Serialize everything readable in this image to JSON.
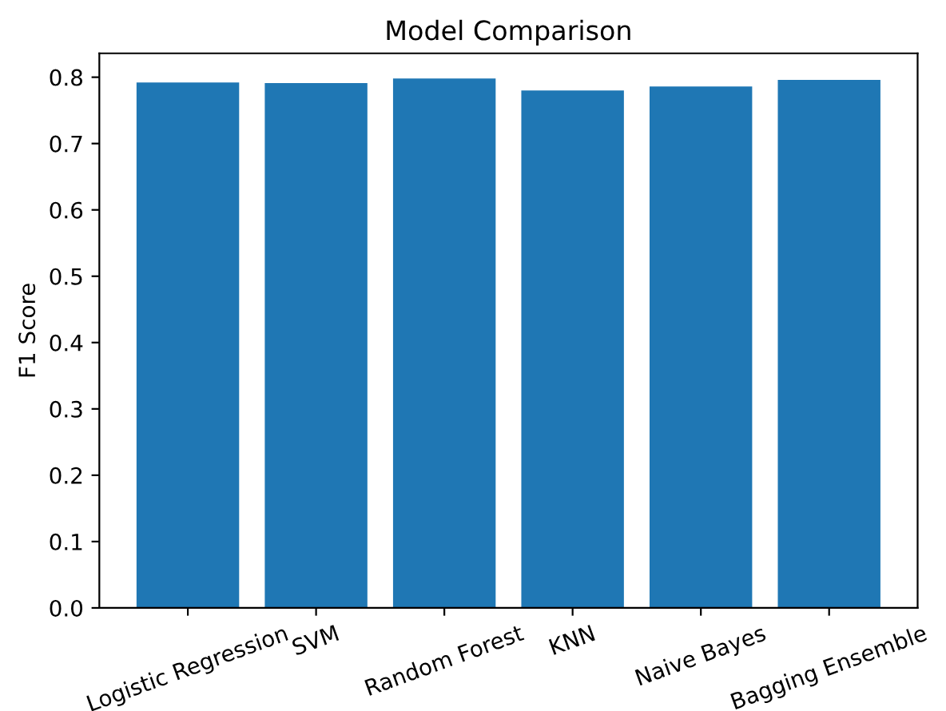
{
  "chart_data": {
    "type": "bar",
    "title": "Model Comparison",
    "ylabel": "F1 Score",
    "categories": [
      "Logistic Regression",
      "SVM",
      "Random Forest",
      "KNN",
      "Naive Bayes",
      "Bagging Ensemble"
    ],
    "values": [
      0.792,
      0.791,
      0.798,
      0.78,
      0.786,
      0.796
    ],
    "color": "#1f77b4",
    "ylim": [
      0,
      0.836
    ],
    "yticks": [
      {
        "value": 0,
        "label": "0.0"
      },
      0.1,
      0.2,
      0.3,
      0.4,
      0.5,
      0.6,
      0.7,
      0.8
    ],
    "grid": false
  }
}
